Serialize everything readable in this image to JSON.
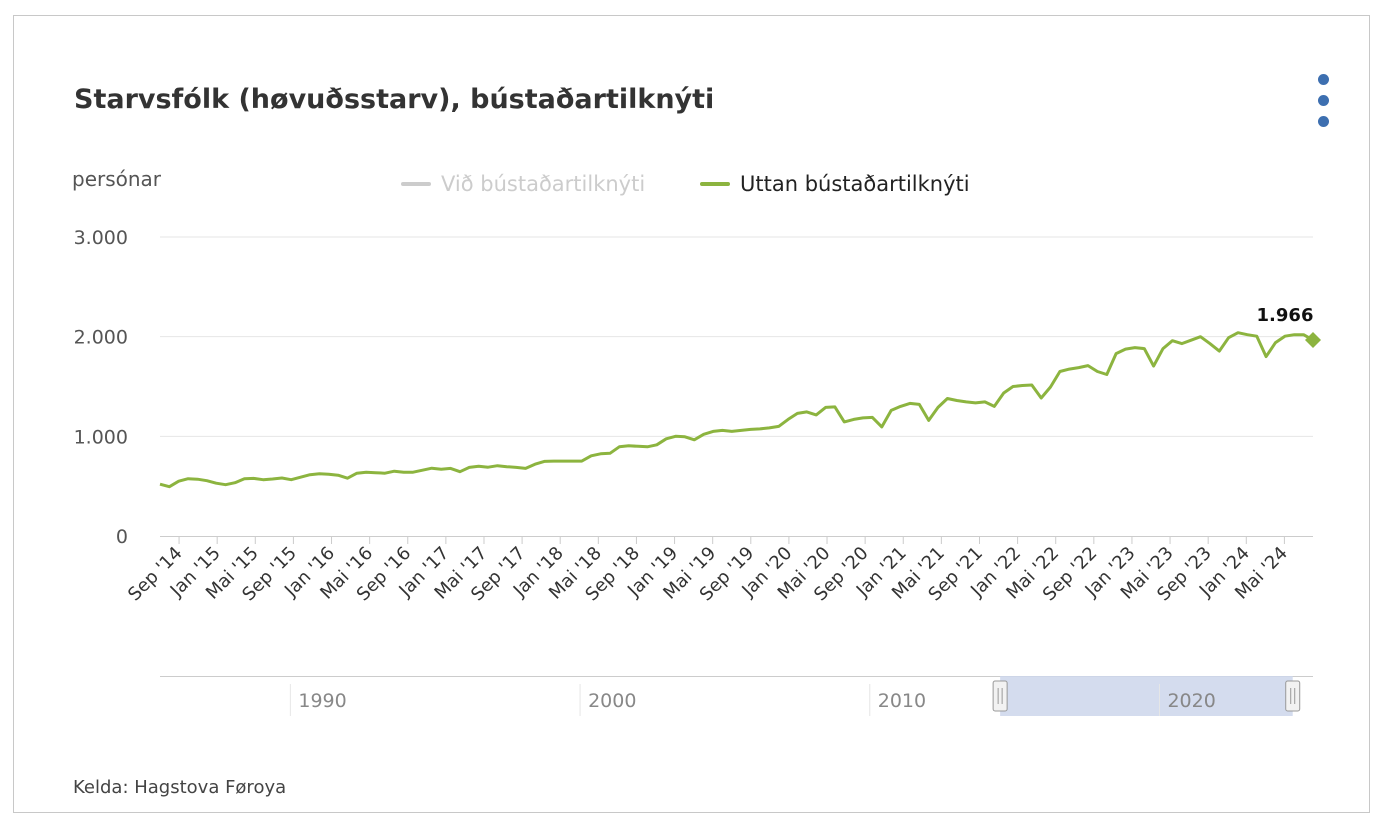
{
  "chart_data": {
    "type": "line",
    "title": "Starvsfólk (høvuðsstarv), bústaðartilknýti",
    "ylabel": "persónar",
    "ylim": [
      0,
      3000
    ],
    "yticks": [
      "0",
      "1.000",
      "2.000",
      "3.000"
    ],
    "ytick_values": [
      0,
      1000,
      2000,
      3000
    ],
    "grid": true,
    "legend_placement": "top",
    "x_tick_labels": [
      "Sep '14",
      "Jan '15",
      "Mai '15",
      "Sep '15",
      "Jan '16",
      "Mai '16",
      "Sep '16",
      "Jan '17",
      "Mai '17",
      "Sep '17",
      "Jan '18",
      "Mai '18",
      "Sep '18",
      "Jan '19",
      "Mai '19",
      "Sep '19",
      "Jan '20",
      "Mai '20",
      "Sep '20",
      "Jan '21",
      "Mai '21",
      "Sep '21",
      "Jan '22",
      "Mai '22",
      "Sep '22",
      "Jan '23",
      "Mai '23",
      "Sep '23",
      "Jan '24",
      "Mai '24"
    ],
    "x_start": "2014-07",
    "x_end": "2024-08",
    "series": [
      {
        "name": "Við bústaðartilknýti",
        "visible": false,
        "color": "#cccccc",
        "values": []
      },
      {
        "name": "Uttan bústaðartilknýti",
        "visible": true,
        "color": "#8cb43f",
        "values": [
          520,
          495,
          550,
          575,
          570,
          555,
          530,
          515,
          535,
          575,
          578,
          565,
          572,
          582,
          565,
          590,
          615,
          625,
          620,
          610,
          580,
          630,
          640,
          635,
          630,
          650,
          640,
          640,
          660,
          680,
          670,
          678,
          645,
          688,
          700,
          690,
          705,
          695,
          688,
          678,
          720,
          748,
          752,
          752,
          752,
          752,
          805,
          825,
          830,
          895,
          905,
          900,
          895,
          915,
          975,
          1000,
          995,
          965,
          1020,
          1050,
          1060,
          1050,
          1060,
          1070,
          1075,
          1085,
          1100,
          1170,
          1230,
          1245,
          1215,
          1290,
          1295,
          1145,
          1170,
          1185,
          1190,
          1095,
          1260,
          1300,
          1330,
          1320,
          1160,
          1290,
          1380,
          1360,
          1345,
          1335,
          1345,
          1300,
          1435,
          1500,
          1510,
          1515,
          1385,
          1495,
          1650,
          1675,
          1690,
          1710,
          1650,
          1620,
          1830,
          1875,
          1890,
          1880,
          1705,
          1880,
          1960,
          1930,
          1965,
          2000,
          1930,
          1855,
          1990,
          2040,
          2020,
          2005,
          1800,
          1940,
          2005,
          2020,
          2020,
          1966
        ]
      }
    ],
    "last_value_label": "1.966",
    "navigator": {
      "tick_labels": [
        "1990",
        "2000",
        "2010",
        "2020"
      ],
      "tick_years": [
        1990,
        2000,
        2010,
        2020
      ],
      "range_start_year": 1985.5,
      "range_end_year": 2025.3,
      "selection_start_year": 2014.5,
      "selection_end_year": 2024.6
    }
  },
  "source": "Kelda: Hagstova Føroya",
  "colors": {
    "series_line": "#8cb43f",
    "series_marker": "#8cb43f",
    "navigator_mask": "#ccd6eb",
    "menu_dots": "#3d6fb0"
  },
  "icons": {
    "menu": "vertical-ellipsis-icon",
    "handle": "grip-handle-icon"
  }
}
